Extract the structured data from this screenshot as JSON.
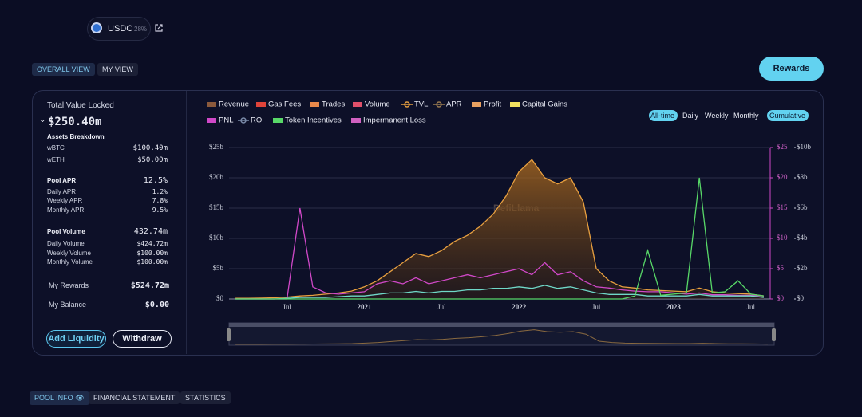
{
  "header": {
    "token": "USDC",
    "share": "28%",
    "view_tabs": [
      "OVERALL VIEW",
      "MY VIEW"
    ],
    "rewards_button": "Rewards"
  },
  "summary": {
    "tvl_label": "Total Value Locked",
    "tvl_value": "$250.40m",
    "assets_title": "Assets Breakdown",
    "assets": [
      [
        "wBTC",
        "$100.40m"
      ],
      [
        "wETH",
        "$50.00m"
      ]
    ],
    "apr_title": "Pool APR",
    "apr_value": "12.5%",
    "apr_rows": [
      [
        "Daily APR",
        "1.2%"
      ],
      [
        "Weekly APR",
        "7.8%"
      ],
      [
        "Monthly APR",
        "9.5%"
      ]
    ],
    "volume_title": "Pool Volume",
    "volume_value": "432.74m",
    "volume_rows": [
      [
        "Daily Volume",
        "$424.72m"
      ],
      [
        "Weekly Volume",
        "$100.00m"
      ],
      [
        "Monthly Volume",
        "$100.00m"
      ]
    ],
    "rewards_label": "My Rewards",
    "rewards_value": "$524.72m",
    "balance_label": "My Balance",
    "balance_value": "$0.00",
    "buttons": [
      "Add Liquidity",
      "Withdraw"
    ]
  },
  "chart_data": {
    "type": "line",
    "watermark": "DefiLlama",
    "ranges": [
      "All-time",
      "Daily",
      "Weekly",
      "Monthly"
    ],
    "active_range": 0,
    "cumulative": "Cumulative",
    "categories": [
      null,
      null,
      null,
      null,
      "Jul",
      null,
      null,
      null,
      null,
      null,
      "2021",
      null,
      null,
      null,
      null,
      null,
      "Jul",
      null,
      null,
      null,
      null,
      null,
      "2022",
      null,
      null,
      null,
      null,
      null,
      "Jul",
      null,
      null,
      null,
      null,
      null,
      "2023",
      null,
      null,
      null,
      null,
      null,
      "Jul",
      null
    ],
    "ylim": [
      0,
      25
    ],
    "yticks": [
      {
        "value": 0,
        "label": "$0"
      },
      {
        "value": 5,
        "label": "$5b"
      },
      {
        "value": 10,
        "label": "$10b"
      },
      {
        "value": 15,
        "label": "$15b"
      },
      {
        "value": 20,
        "label": "$20b"
      },
      {
        "value": 25,
        "label": "$25b"
      }
    ],
    "y2lim": [
      0,
      25
    ],
    "y2ticks": [
      {
        "value": 0,
        "label": "$0"
      },
      {
        "value": 5,
        "label": "$5"
      },
      {
        "value": 10,
        "label": "$10"
      },
      {
        "value": 15,
        "label": "$15"
      },
      {
        "value": 20,
        "label": "$20"
      },
      {
        "value": 25,
        "label": "$25"
      }
    ],
    "y3lim": [
      0,
      10
    ],
    "y3ticks": [
      {
        "value": 0,
        "label": "$0"
      },
      {
        "value": 2,
        "label": "$2b"
      },
      {
        "value": 4,
        "label": "$4b"
      },
      {
        "value": 6,
        "label": "$6b"
      },
      {
        "value": 8,
        "label": "$8b"
      },
      {
        "value": 10,
        "label": "$10b"
      }
    ],
    "grid": true,
    "series": [
      {
        "name": "Revenue",
        "color": "#8b5a3c",
        "style": "bar"
      },
      {
        "name": "Gas Fees",
        "color": "#e0443a",
        "style": "bar"
      },
      {
        "name": "Trades",
        "color": "#e8884a",
        "style": "bar"
      },
      {
        "name": "Volume",
        "color": "#e0506a",
        "style": "bar"
      },
      {
        "name": "TVL",
        "color": "#e8a040",
        "style": "line",
        "area": true,
        "values": [
          0.1,
          0.1,
          0.15,
          0.2,
          0.3,
          0.5,
          0.6,
          0.8,
          1.0,
          1.3,
          2,
          3,
          4.5,
          6,
          7.5,
          7,
          8,
          9.5,
          10.5,
          12,
          14,
          17,
          21,
          23,
          20,
          19,
          20,
          16,
          5,
          3,
          2,
          1.8,
          1.5,
          1.4,
          1.3,
          1.2,
          1.8,
          1.2,
          1.0,
          0.9,
          0.8,
          0.5
        ]
      },
      {
        "name": "APR",
        "color": "#9a7a50",
        "style": "line"
      },
      {
        "name": "Profit",
        "color": "#e8a060",
        "style": "bar"
      },
      {
        "name": "Capital Gains",
        "color": "#f0e060",
        "style": "bar"
      },
      {
        "name": "PNL",
        "color": "#d048c8",
        "style": "bar",
        "axis": "y2",
        "values": [
          0,
          0,
          0,
          0,
          0,
          15,
          2,
          1,
          0.8,
          1,
          1.2,
          2.5,
          3,
          2.5,
          3.5,
          2.5,
          3,
          3.5,
          4,
          3.5,
          4,
          4.5,
          5,
          4,
          6,
          4,
          4.5,
          3,
          2,
          1.8,
          1.5,
          1.3,
          1.2,
          1.2,
          1,
          0.8,
          1,
          0.7,
          0.7,
          0.6,
          0.6,
          0.5
        ]
      },
      {
        "name": "ROI",
        "color": "#7a8aa8",
        "style": "line",
        "axis": "y3",
        "line_color": "#6fd8c8",
        "values": [
          0,
          0,
          0,
          0,
          0.05,
          0.1,
          0.1,
          0.1,
          0.15,
          0.2,
          0.2,
          0.3,
          0.4,
          0.4,
          0.5,
          0.4,
          0.5,
          0.5,
          0.6,
          0.6,
          0.7,
          0.7,
          0.8,
          0.7,
          0.9,
          0.7,
          0.8,
          0.6,
          0.4,
          0.3,
          0.3,
          0.3,
          0.2,
          0.2,
          0.2,
          0.2,
          0.3,
          0.2,
          0.2,
          0.2,
          0.2,
          0.1
        ]
      },
      {
        "name": "Token Incentives",
        "color": "#58d868",
        "style": "bar",
        "axis": "y2",
        "values": [
          0,
          0,
          0,
          0,
          0,
          0,
          0,
          0,
          0,
          0,
          0,
          0,
          0,
          0,
          0,
          0,
          0,
          0,
          0,
          0,
          0,
          0,
          0,
          0,
          0,
          0,
          0,
          0,
          0,
          0,
          0,
          0.5,
          8,
          0.6,
          0.8,
          1,
          20,
          1,
          1.2,
          3,
          0.8,
          0.5
        ]
      },
      {
        "name": "Impermanent Loss",
        "color": "#d060c0",
        "style": "bar"
      }
    ]
  },
  "footer_tabs": [
    "POOL INFO",
    "FINANCIAL STATEMENT",
    "STATISTICS"
  ]
}
